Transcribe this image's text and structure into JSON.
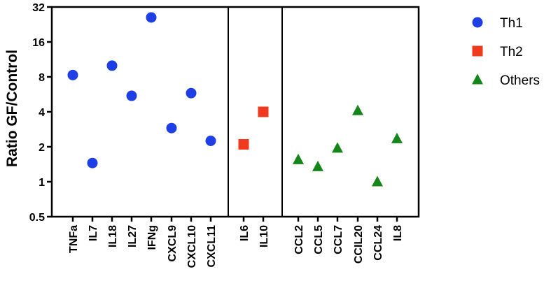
{
  "chart_data": {
    "type": "scatter",
    "ylabel": "Ratio GF/Control",
    "y_scale": "log2",
    "ylim": [
      0.5,
      32
    ],
    "y_ticks": [
      "0.5",
      "1",
      "2",
      "4",
      "8",
      "16",
      "32"
    ],
    "y_tick_values": [
      0.5,
      1,
      2,
      4,
      8,
      16,
      32
    ],
    "categories": [
      "TNFa",
      "IL7",
      "IL18",
      "IL27",
      "IFNg",
      "CXCL9",
      "CXCL10",
      "CXCL11",
      "IL6",
      "IL10",
      "CCL2",
      "CCL5",
      "CCL7",
      "CCIL20",
      "CCL24",
      "IL8"
    ],
    "panels": [
      [
        "TNFa",
        "IL7",
        "IL18",
        "IL27",
        "IFNg",
        "CXCL9",
        "CXCL10",
        "CXCL11"
      ],
      [
        "IL6",
        "IL10"
      ],
      [
        "CCL2",
        "CCL5",
        "CCL7",
        "CCIL20",
        "CCL24",
        "IL8"
      ]
    ],
    "series": [
      {
        "name": "Th1",
        "marker": "circle",
        "color": "#1f3fe6",
        "points": [
          {
            "x": "TNFa",
            "y": 8.3
          },
          {
            "x": "IL7",
            "y": 1.45
          },
          {
            "x": "IL18",
            "y": 10.0
          },
          {
            "x": "IL27",
            "y": 5.5
          },
          {
            "x": "IFNg",
            "y": 26.0
          },
          {
            "x": "CXCL9",
            "y": 2.9
          },
          {
            "x": "CXCL10",
            "y": 5.8
          },
          {
            "x": "CXCL11",
            "y": 2.25
          }
        ]
      },
      {
        "name": "Th2",
        "marker": "square",
        "color": "#f03a1e",
        "points": [
          {
            "x": "IL6",
            "y": 2.1
          },
          {
            "x": "IL10",
            "y": 4.0
          }
        ]
      },
      {
        "name": "Others",
        "marker": "triangle",
        "color": "#17861a",
        "points": [
          {
            "x": "CCL2",
            "y": 1.55
          },
          {
            "x": "CCL5",
            "y": 1.35
          },
          {
            "x": "CCL7",
            "y": 1.95
          },
          {
            "x": "CCIL20",
            "y": 4.1
          },
          {
            "x": "CCL24",
            "y": 1.0
          },
          {
            "x": "IL8",
            "y": 2.35
          }
        ]
      }
    ],
    "legend_position": "right",
    "grid": false
  }
}
